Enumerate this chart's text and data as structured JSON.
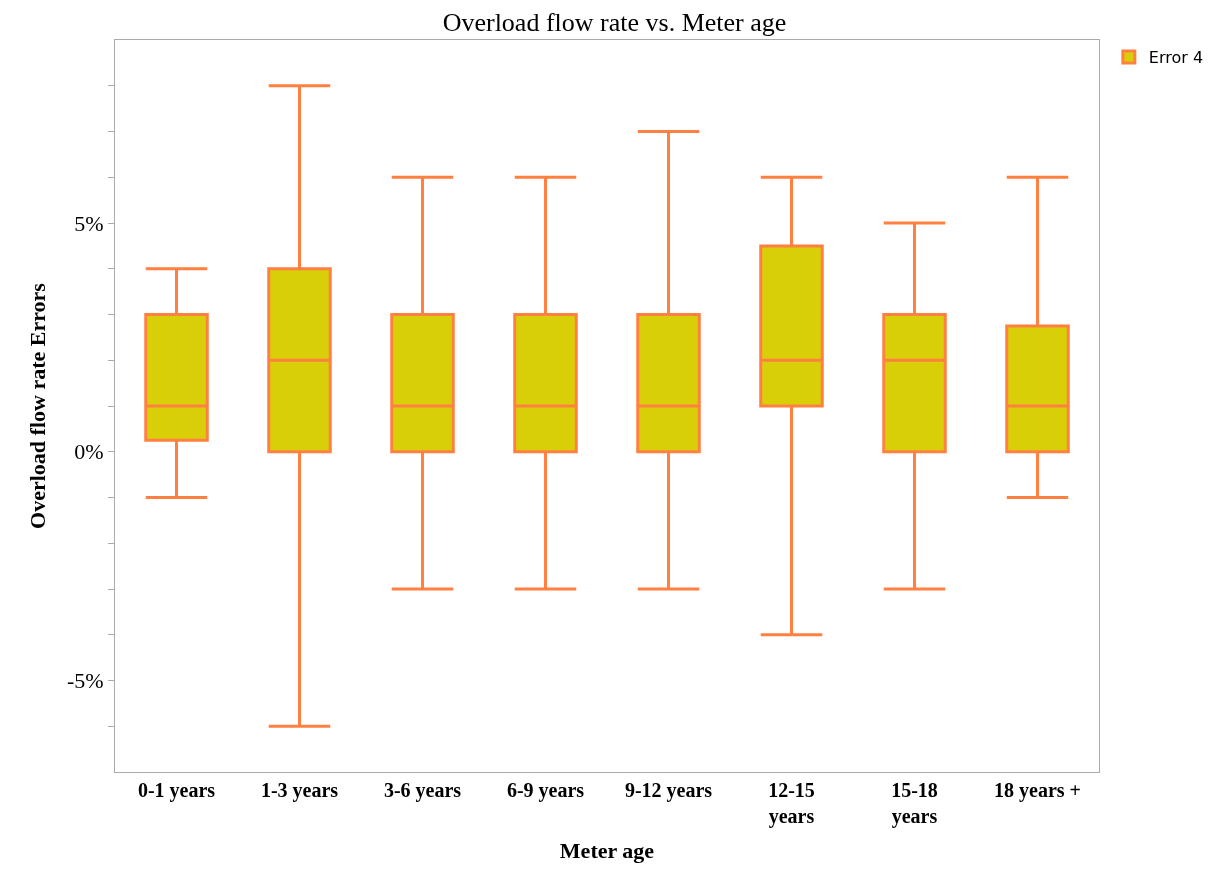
{
  "chart_data": {
    "type": "box",
    "title": "Overload flow rate vs. Meter age",
    "xlabel": "Meter age",
    "ylabel": "Overload flow rate Errors",
    "categories": [
      "0-1 years",
      "1-3 years",
      "3-6 years",
      "6-9 years",
      "9-12 years",
      "12-15 years",
      "15-18 years",
      "18 years +"
    ],
    "series": [
      {
        "name": "Error 4",
        "color": "#d9cf08",
        "boxes": [
          {
            "low": -1,
            "q1": 0.25,
            "median": 1,
            "q3": 3,
            "high": 4
          },
          {
            "low": -6,
            "q1": 0,
            "median": 2,
            "q3": 4,
            "high": 8
          },
          {
            "low": -3,
            "q1": 0,
            "median": 1,
            "q3": 3,
            "high": 6
          },
          {
            "low": -3,
            "q1": 0,
            "median": 1,
            "q3": 3,
            "high": 6
          },
          {
            "low": -3,
            "q1": 0,
            "median": 1,
            "q3": 3,
            "high": 7
          },
          {
            "low": -4,
            "q1": 1,
            "median": 2,
            "q3": 4.5,
            "high": 6
          },
          {
            "low": -3,
            "q1": 0,
            "median": 2,
            "q3": 3,
            "high": 5
          },
          {
            "low": -1,
            "q1": 0,
            "median": 1,
            "q3": 2.75,
            "high": 6
          }
        ]
      }
    ],
    "ylim": [
      -7,
      9
    ],
    "yticks": [
      {
        "value": -6,
        "label": null
      },
      {
        "value": -5,
        "label": "-5%"
      },
      {
        "value": -4,
        "label": null
      },
      {
        "value": -3,
        "label": null
      },
      {
        "value": -2,
        "label": null
      },
      {
        "value": -1,
        "label": null
      },
      {
        "value": 0,
        "label": "0%"
      },
      {
        "value": 1,
        "label": null
      },
      {
        "value": 2,
        "label": null
      },
      {
        "value": 3,
        "label": null
      },
      {
        "value": 4,
        "label": null
      },
      {
        "value": 5,
        "label": "5%"
      },
      {
        "value": 6,
        "label": null
      },
      {
        "value": 7,
        "label": null
      },
      {
        "value": 8,
        "label": null
      }
    ],
    "legend": "top right"
  }
}
